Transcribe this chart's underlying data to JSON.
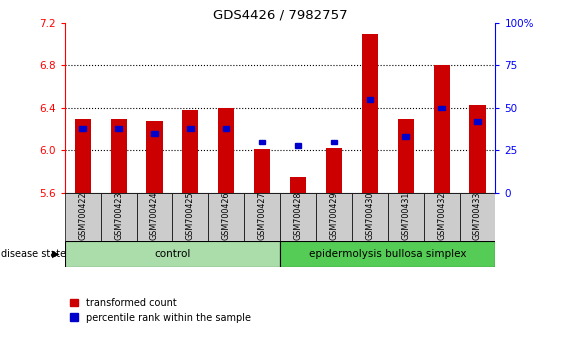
{
  "title": "GDS4426 / 7982757",
  "samples": [
    "GSM700422",
    "GSM700423",
    "GSM700424",
    "GSM700425",
    "GSM700426",
    "GSM700427",
    "GSM700428",
    "GSM700429",
    "GSM700430",
    "GSM700431",
    "GSM700432",
    "GSM700433"
  ],
  "red_values": [
    6.3,
    6.3,
    6.28,
    6.38,
    6.4,
    6.01,
    5.75,
    6.02,
    7.1,
    6.3,
    6.8,
    6.43
  ],
  "blue_pct": [
    38,
    38,
    35,
    38,
    38,
    30,
    28,
    30,
    55,
    33,
    50,
    42
  ],
  "ymin": 5.6,
  "ymax": 7.2,
  "yticks": [
    5.6,
    6.0,
    6.4,
    6.8,
    7.2
  ],
  "bar_color": "#cc0000",
  "blue_color": "#0000cc",
  "control_count": 6,
  "disease_count": 6,
  "control_label": "control",
  "disease_label": "epidermolysis bullosa simplex",
  "disease_state_label": "disease state",
  "legend_red": "transformed count",
  "legend_blue": "percentile rank within the sample",
  "control_bg": "#aaddaa",
  "disease_bg": "#55cc55",
  "xlabel_bg": "#cccccc",
  "right_yticks": [
    0,
    25,
    50,
    75,
    100
  ],
  "right_yticklabels": [
    "0",
    "25",
    "50",
    "75",
    "100%"
  ]
}
